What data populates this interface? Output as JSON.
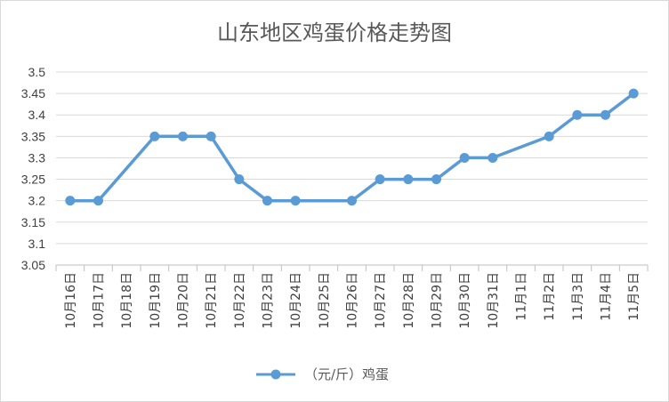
{
  "chart_data": {
    "type": "line",
    "title": "山东地区鸡蛋价格走势图",
    "xlabel": "",
    "ylabel": "",
    "categories": [
      "10月16日",
      "10月17日",
      "10月18日",
      "10月19日",
      "10月20日",
      "10月21日",
      "10月22日",
      "10月23日",
      "10月24日",
      "10月25日",
      "10月26日",
      "10月27日",
      "10月28日",
      "10月29日",
      "10月30日",
      "10月31日",
      "11月1日",
      "11月2日",
      "11月3日",
      "11月4日",
      "11月5日"
    ],
    "series": [
      {
        "name": "（元/斤）鸡蛋",
        "color": "#5b9bd5",
        "values": [
          3.2,
          3.2,
          null,
          3.35,
          3.35,
          3.35,
          3.25,
          3.2,
          3.2,
          null,
          3.2,
          3.25,
          3.25,
          3.25,
          3.3,
          3.3,
          null,
          3.35,
          3.4,
          3.4,
          3.45
        ]
      }
    ],
    "yticks": [
      "3.05",
      "3.1",
      "3.15",
      "3.2",
      "3.25",
      "3.3",
      "3.35",
      "3.4",
      "3.45",
      "3.5"
    ],
    "ylim": [
      3.05,
      3.5
    ],
    "grid": true,
    "legend_position": "bottom"
  }
}
